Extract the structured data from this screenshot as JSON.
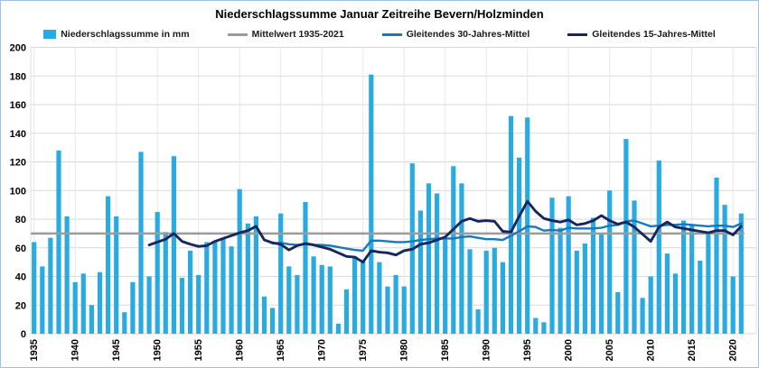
{
  "title": "Niederschlagssumme Januar Zeitreihe Bevern/Holzminden",
  "legend": [
    {
      "label": "Niederschlagssumme in mm",
      "type": "bar",
      "color": "#29ABE2"
    },
    {
      "label": "Mittelwert 1935-2021",
      "type": "line",
      "color": "#9B9B9B"
    },
    {
      "label": "Gleitendes 30-Jahres-Mittel",
      "type": "line",
      "color": "#1878BE"
    },
    {
      "label": "Gleitendes 15-Jahres-Mittel",
      "type": "line",
      "color": "#17265E"
    }
  ],
  "chart_data": {
    "type": "bar",
    "title": "Niederschlagssumme Januar Zeitreihe Bevern/Holzminden",
    "xlabel": "",
    "ylabel": "",
    "ylim": [
      0,
      200
    ],
    "y_tick_step": 20,
    "x_tick_years": [
      1935,
      1940,
      1945,
      1950,
      1955,
      1960,
      1965,
      1970,
      1975,
      1980,
      1985,
      1990,
      1995,
      2000,
      2005,
      2010,
      2015,
      2020
    ],
    "grid": true,
    "legend_position": "top",
    "series": [
      {
        "name": "Niederschlagssumme in mm",
        "type": "bar",
        "color": "#29ABE2",
        "start_year": 1935,
        "values": [
          64,
          47,
          67,
          128,
          82,
          36,
          42,
          20,
          43,
          96,
          82,
          15,
          36,
          127,
          40,
          85,
          71,
          124,
          39,
          58,
          41,
          64,
          65,
          67,
          61,
          101,
          77,
          82,
          26,
          18,
          84,
          47,
          41,
          92,
          54,
          48,
          47,
          7,
          31,
          54,
          51,
          181,
          50,
          33,
          41,
          33,
          119,
          86,
          105,
          98,
          66,
          117,
          105,
          59,
          17,
          58,
          60,
          50,
          152,
          123,
          151,
          11,
          8,
          95,
          74,
          96,
          58,
          63,
          81,
          70,
          100,
          29,
          136,
          93,
          25,
          40,
          121,
          56,
          42,
          79,
          76,
          51,
          70,
          109,
          90,
          40,
          84
        ]
      },
      {
        "name": "Mittelwert 1935-2021",
        "type": "hline",
        "color": "#9B9B9B",
        "value": 70
      },
      {
        "name": "Gleitendes 30-Jahres-Mittel",
        "type": "line",
        "color": "#1878BE",
        "start_year": 1964,
        "values": [
          63,
          63.5,
          62.5,
          62,
          62.5,
          62,
          62,
          61.5,
          60.5,
          59.5,
          58.5,
          58,
          65,
          65,
          64.5,
          64,
          64,
          64.5,
          65.5,
          66,
          66.5,
          66.5,
          66.5,
          67.5,
          68,
          67,
          66,
          66,
          65.5,
          68.5,
          71.5,
          75,
          74.5,
          72,
          72.5,
          72,
          74,
          73.5,
          73.5,
          73.5,
          74,
          75.5,
          76,
          78.5,
          79,
          77,
          75,
          75.5,
          76,
          76,
          76.5,
          76,
          75.5,
          75,
          75.5,
          75.5,
          74.5,
          77
        ]
      },
      {
        "name": "Gleitendes 15-Jahres-Mittel",
        "type": "line",
        "color": "#17265E",
        "start_year": 1949,
        "values": [
          62,
          64,
          66,
          70,
          64.5,
          62.5,
          61,
          61.5,
          64.5,
          66.5,
          68.5,
          70.5,
          72,
          75,
          65.5,
          63.5,
          62.5,
          58.5,
          61.5,
          63,
          62,
          60.5,
          59,
          56.5,
          54,
          53.5,
          50,
          58,
          57,
          56.5,
          55,
          58,
          59,
          62.5,
          63.5,
          65.5,
          67.5,
          73,
          78.5,
          80.5,
          78.5,
          79,
          78.5,
          71.5,
          71,
          82,
          92.5,
          85.5,
          80.5,
          79,
          78,
          79.5,
          76,
          77,
          79,
          82.5,
          79,
          76.5,
          78,
          74.5,
          69.5,
          64.5,
          74.5,
          78,
          74.5,
          73.5,
          72.5,
          71.5,
          70.5,
          72,
          72,
          69,
          75
        ]
      }
    ]
  }
}
